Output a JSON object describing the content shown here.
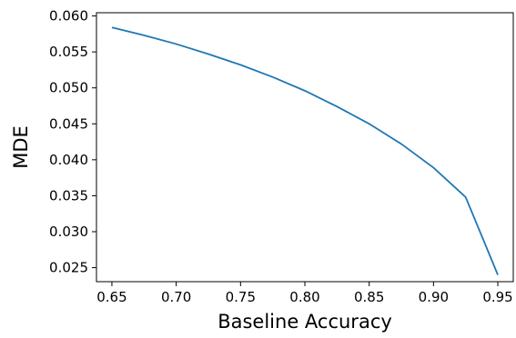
{
  "chart_data": {
    "type": "line",
    "title": "",
    "xlabel": "Baseline Accuracy",
    "ylabel": "MDE",
    "xlim": [
      0.638,
      0.962
    ],
    "ylim": [
      0.02305,
      0.06045
    ],
    "x_ticks": [
      0.65,
      0.7,
      0.75,
      0.8,
      0.85,
      0.9,
      0.95
    ],
    "x_tick_labels": [
      "0.65",
      "0.70",
      "0.75",
      "0.80",
      "0.85",
      "0.90",
      "0.95"
    ],
    "y_ticks": [
      0.025,
      0.03,
      0.035,
      0.04,
      0.045,
      0.05,
      0.055,
      0.06
    ],
    "y_tick_labels": [
      "0.025",
      "0.030",
      "0.035",
      "0.040",
      "0.045",
      "0.050",
      "0.055",
      "0.060"
    ],
    "grid": false,
    "series": [
      {
        "color": "#1f77b4",
        "x": [
          0.65,
          0.675,
          0.7,
          0.725,
          0.75,
          0.775,
          0.8,
          0.825,
          0.85,
          0.875,
          0.9,
          0.925,
          0.95
        ],
        "y": [
          0.0584,
          0.0573,
          0.0561,
          0.0547,
          0.0532,
          0.0515,
          0.0496,
          0.0474,
          0.045,
          0.0422,
          0.0389,
          0.0348,
          0.024
        ]
      }
    ]
  }
}
